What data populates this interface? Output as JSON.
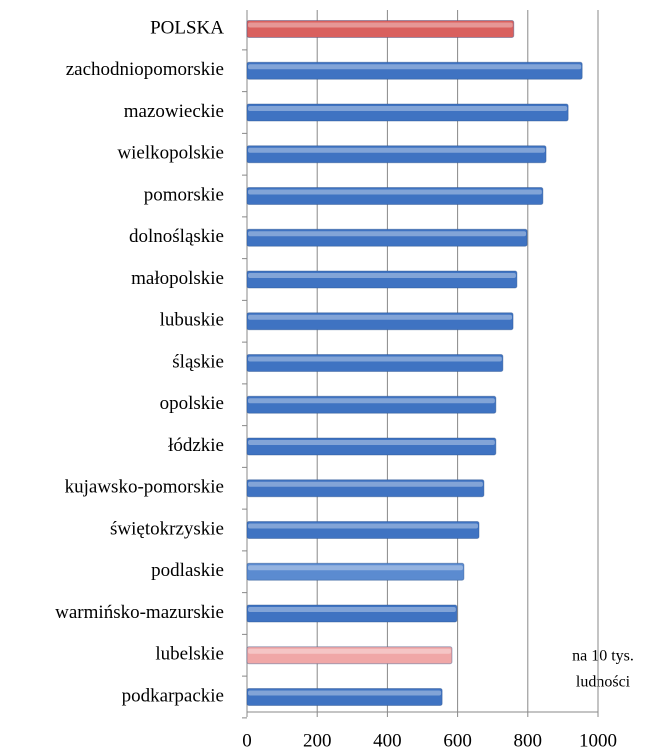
{
  "chart_data": {
    "type": "bar",
    "orientation": "horizontal",
    "categories": [
      "POLSKA",
      "zachodniopomorskie",
      "mazowieckie",
      "wielkopolskie",
      "pomorskie",
      "dolnośląskie",
      "małopolskie",
      "lubuskie",
      "śląskie",
      "opolskie",
      "łódzkie",
      "kujawsko-pomorskie",
      "świętokrzyskie",
      "podlaskie",
      "warmińsko-mazurskie",
      "lubelskie",
      "podkarpackie"
    ],
    "values": [
      760,
      955,
      915,
      852,
      843,
      798,
      769,
      758,
      729,
      709,
      709,
      675,
      661,
      618,
      598,
      584,
      556
    ],
    "colors": [
      "#d9605e",
      "#3f73c2",
      "#3f73c2",
      "#3f73c2",
      "#3f73c2",
      "#3f73c2",
      "#3f73c2",
      "#3f73c2",
      "#3f73c2",
      "#3f73c2",
      "#3f73c2",
      "#3f73c2",
      "#3f73c2",
      "#5b8bd0",
      "#3f73c2",
      "#f0a7a7",
      "#3f73c2"
    ],
    "xlim": [
      0,
      1000
    ],
    "xticks": [
      0,
      200,
      400,
      600,
      800,
      1000
    ],
    "grid": true,
    "annotation": [
      "na 10 tys.",
      "ludności"
    ]
  }
}
